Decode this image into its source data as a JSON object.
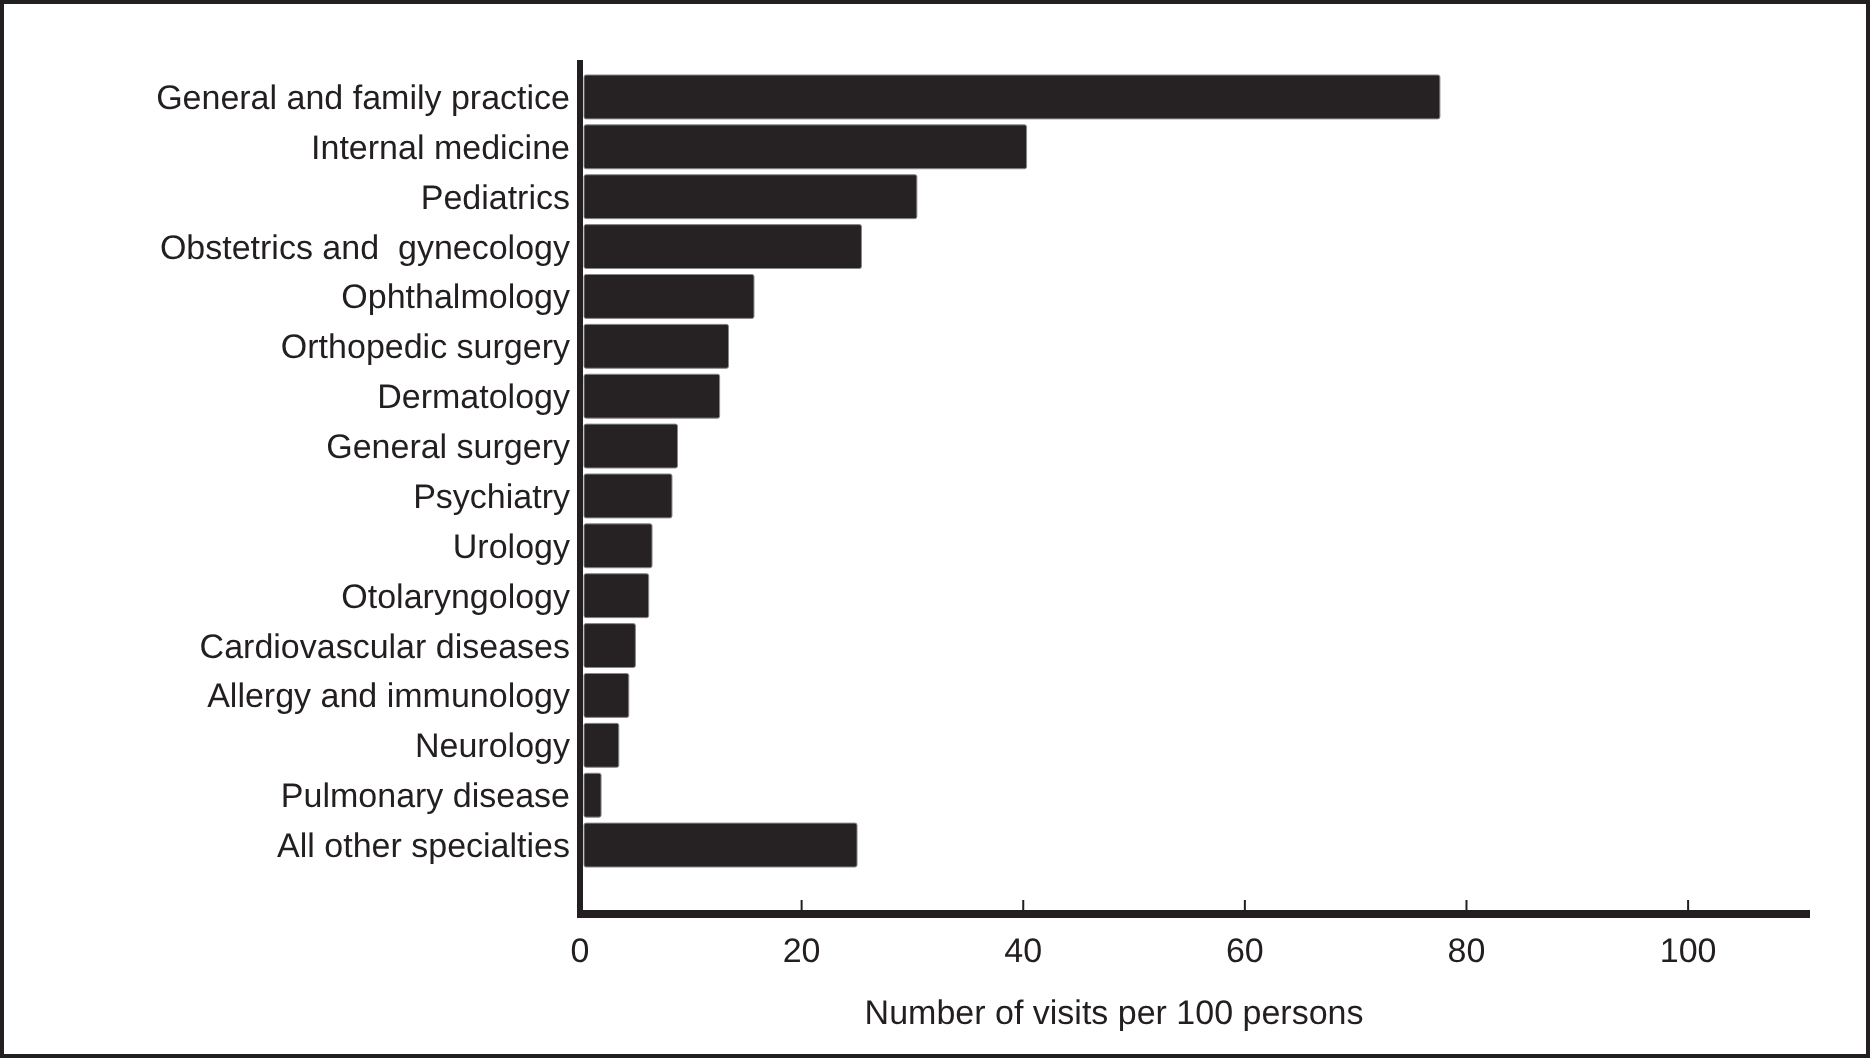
{
  "chart_data": {
    "type": "bar",
    "orientation": "horizontal",
    "xlabel": "Number of visits per 100 persons",
    "categories": [
      "General and family practice",
      "Internal medicine",
      "Pediatrics",
      "Obstetrics and  gynecology",
      "Ophthalmology",
      "Orthopedic surgery",
      "Dermatology",
      "General surgery",
      "Psychiatry",
      "Urology",
      "Otolaryngology",
      "Cardiovascular diseases",
      "Allergy and immunology",
      "Neurology",
      "Pulmonary disease",
      "All other specialties"
    ],
    "values": [
      77.6,
      40.3,
      30.4,
      25.4,
      15.7,
      13.4,
      12.6,
      8.8,
      8.3,
      6.5,
      6.2,
      5.0,
      4.4,
      3.5,
      1.9,
      25.0
    ],
    "color": "#262223",
    "xlim": [
      0,
      111
    ],
    "xticks": [
      0,
      20,
      40,
      60,
      80,
      100
    ],
    "grid": false
  }
}
